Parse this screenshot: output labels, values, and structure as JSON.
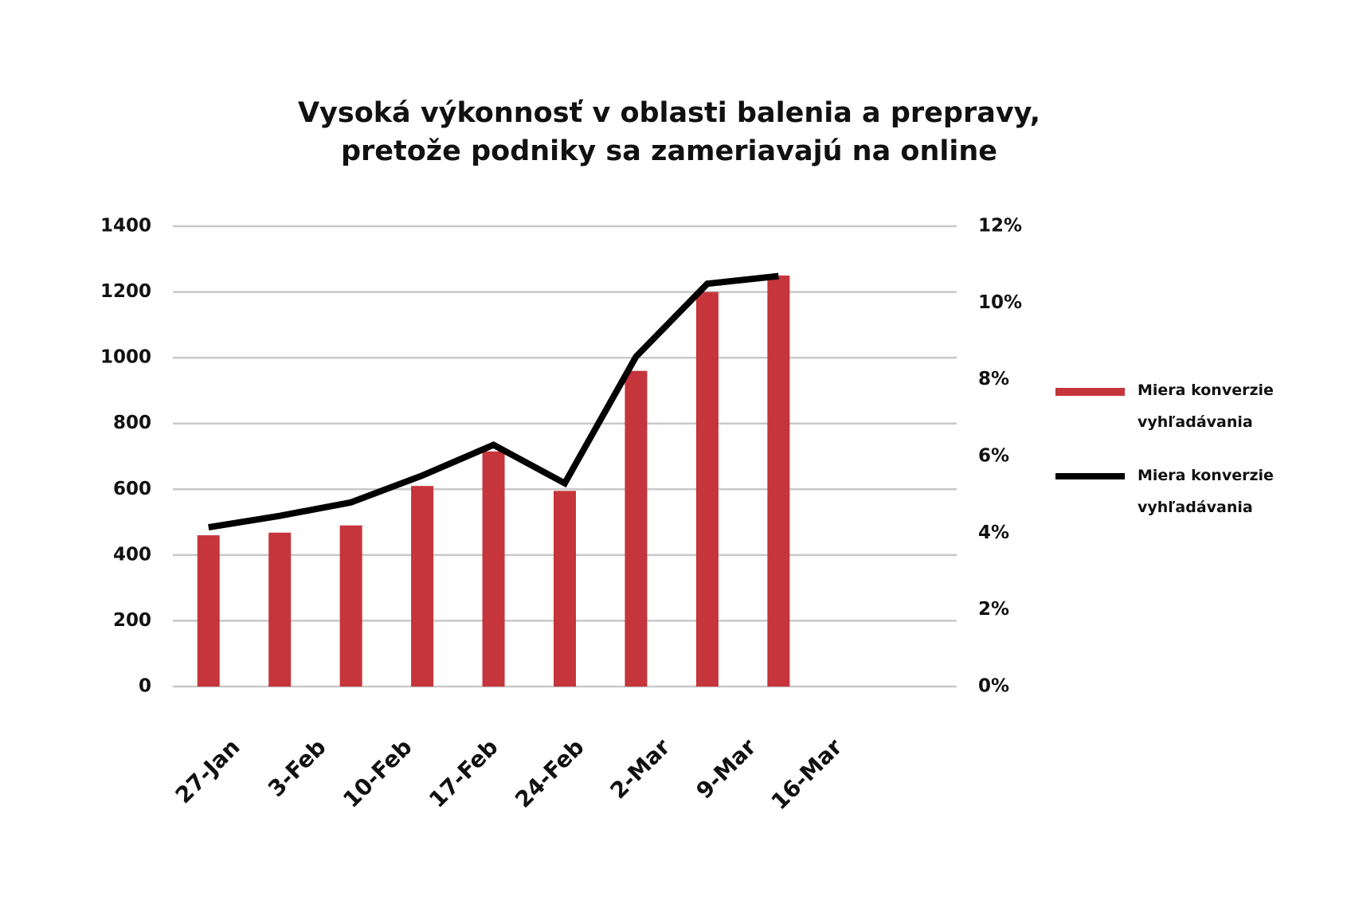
{
  "chart_data": {
    "type": "bar_line",
    "title": "Vysoká výkonnosť v oblasti balenia a prepravy, pretože podniky sa zameriavajú na online",
    "categories": [
      "27-Jan",
      "3-Feb",
      "10-Feb",
      "17-Feb",
      "24-Feb",
      "2-Mar",
      "9-Mar",
      "16-Mar",
      null
    ],
    "series": [
      {
        "name": "Miera konverzie vyhľadávania",
        "type": "bar",
        "color": "#c5353b",
        "values": [
          460,
          468,
          490,
          610,
          715,
          595,
          960,
          1200,
          1250
        ]
      },
      {
        "name": "Miera konverzie vyhľadávania",
        "type": "line",
        "axis": "y2",
        "color": "#000000",
        "values": [
          4.15,
          4.45,
          4.8,
          5.5,
          6.3,
          5.3,
          8.6,
          10.5,
          10.7
        ]
      }
    ],
    "ylim": [
      0,
      1400
    ],
    "yticks": [
      0,
      200,
      400,
      600,
      800,
      1000,
      1200,
      1400
    ],
    "y2lim": [
      0,
      12
    ],
    "y2ticks": [
      {
        "value": 0,
        "label": "0%"
      },
      {
        "value": 2,
        "label": "2%"
      },
      {
        "value": 4,
        "label": "4%"
      },
      {
        "value": 6,
        "label": "6%"
      },
      {
        "value": 8,
        "label": "8%"
      },
      {
        "value": 10,
        "label": "10%"
      },
      {
        "value": 12,
        "label": "12%"
      }
    ],
    "grid": true,
    "legend": "right"
  }
}
